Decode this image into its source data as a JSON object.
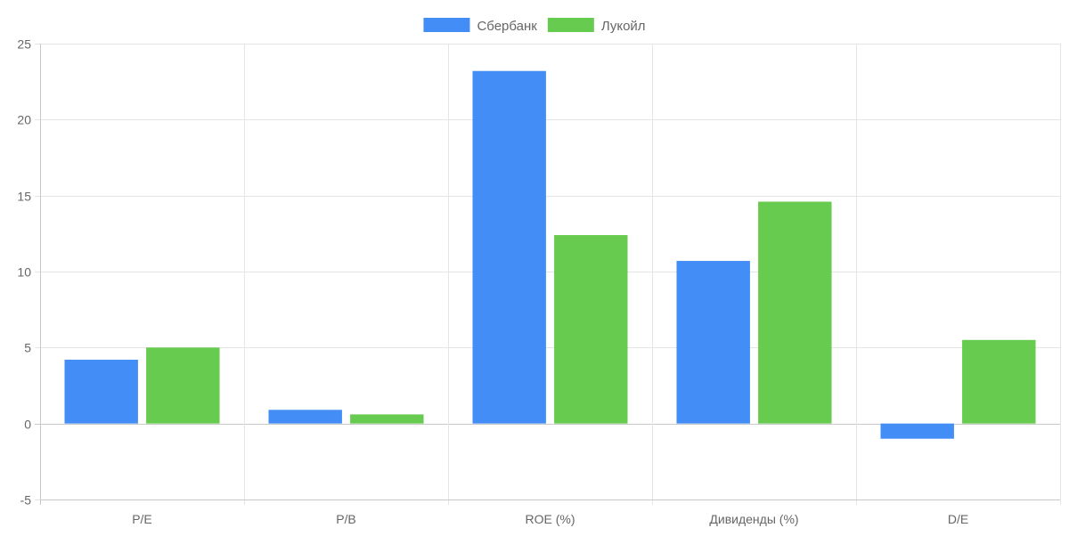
{
  "colors": {
    "grid": "#e5e5e5",
    "axis": "#c8c8c8",
    "tick_text": "#666666",
    "series_sberbank": "#438df7",
    "series_lukoil": "#66cb4e"
  },
  "chart_data": {
    "type": "bar",
    "title": "",
    "xlabel": "",
    "ylabel": "",
    "categories": [
      "P/E",
      "P/B",
      "ROE (%)",
      "Дивиденды (%)",
      "D/E"
    ],
    "series": [
      {
        "name": "Сбербанк",
        "values": [
          4.2,
          0.9,
          23.2,
          10.7,
          -1.0
        ]
      },
      {
        "name": "Лукойл",
        "values": [
          5.0,
          0.6,
          12.4,
          14.6,
          5.5
        ]
      }
    ],
    "ylim": [
      -5,
      25
    ],
    "yticks": [
      -5,
      0,
      5,
      10,
      15,
      20,
      25
    ],
    "grid": true,
    "legend": "top-center"
  }
}
